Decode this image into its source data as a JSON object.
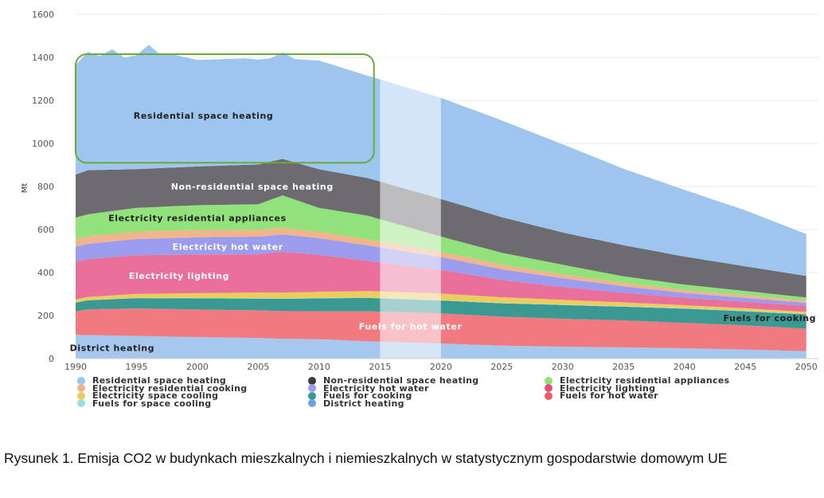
{
  "chart_data": {
    "type": "area",
    "stacked": true,
    "ylabel": "Mt",
    "ylim": [
      0,
      1600
    ],
    "yticks": [
      0,
      200,
      400,
      600,
      800,
      1000,
      1200,
      1400,
      1600
    ],
    "xlim": [
      1990,
      2051
    ],
    "xticks": [
      1990,
      1995,
      2000,
      2005,
      2010,
      2015,
      2020,
      2025,
      2030,
      2035,
      2040,
      2045,
      2050
    ],
    "projection_shading": {
      "from": 2015,
      "to": 2020
    },
    "highlight_box": {
      "from_x": 1990,
      "to_x": 2014.5,
      "from_y": 910,
      "to_y": 1415,
      "color": "#6aaa3a"
    },
    "series": [
      {
        "name": "District heating",
        "color": "#a6c8ee",
        "label": "District heating",
        "label_x": 1993,
        "label_y": 50,
        "points": [
          [
            1990,
            110
          ],
          [
            1995,
            105
          ],
          [
            2000,
            100
          ],
          [
            2005,
            96
          ],
          [
            2007,
            92
          ],
          [
            2010,
            90
          ],
          [
            2014,
            80
          ],
          [
            2020,
            70
          ],
          [
            2025,
            60
          ],
          [
            2030,
            55
          ],
          [
            2035,
            52
          ],
          [
            2040,
            48
          ],
          [
            2045,
            42
          ],
          [
            2050,
            34
          ]
        ]
      },
      {
        "name": "Fuels for hot water",
        "color": "#f07a80",
        "label": "Fuels for hot water",
        "label_x": 2017.5,
        "label_y": 150,
        "label_color": "#ffffff",
        "points": [
          [
            1990,
            110
          ],
          [
            1991,
            120
          ],
          [
            1995,
            128
          ],
          [
            2000,
            128
          ],
          [
            2005,
            128
          ],
          [
            2010,
            130
          ],
          [
            2014,
            140
          ],
          [
            2020,
            140
          ],
          [
            2025,
            135
          ],
          [
            2030,
            130
          ],
          [
            2035,
            125
          ],
          [
            2040,
            118
          ],
          [
            2045,
            112
          ],
          [
            2050,
            105
          ]
        ]
      },
      {
        "name": "Fuels for cooking",
        "color": "#3a9a92",
        "label": "Fuels for cooking",
        "label_x": 2047,
        "label_y": 188,
        "points": [
          [
            1990,
            40
          ],
          [
            1995,
            48
          ],
          [
            2000,
            52
          ],
          [
            2005,
            55
          ],
          [
            2010,
            60
          ],
          [
            2014,
            62
          ],
          [
            2020,
            60
          ],
          [
            2025,
            62
          ],
          [
            2030,
            64
          ],
          [
            2035,
            64
          ],
          [
            2040,
            66
          ],
          [
            2045,
            66
          ],
          [
            2050,
            66
          ]
        ]
      },
      {
        "name": "Fuels for space cooling",
        "color": "#8fe3e6",
        "points": [
          [
            1990,
            1
          ],
          [
            2000,
            2
          ],
          [
            2010,
            2
          ],
          [
            2020,
            2
          ],
          [
            2030,
            2
          ],
          [
            2040,
            2
          ],
          [
            2050,
            2
          ]
        ]
      },
      {
        "name": "Electricity space cooling",
        "color": "#eccc5a",
        "points": [
          [
            1990,
            14
          ],
          [
            1995,
            18
          ],
          [
            2000,
            22
          ],
          [
            2005,
            26
          ],
          [
            2010,
            28
          ],
          [
            2014,
            30
          ],
          [
            2020,
            30
          ],
          [
            2025,
            26
          ],
          [
            2030,
            22
          ],
          [
            2035,
            18
          ],
          [
            2040,
            14
          ],
          [
            2045,
            12
          ],
          [
            2050,
            10
          ]
        ]
      },
      {
        "name": "Electricity lighting",
        "color": "#e8709a",
        "label": "Electricity lighting",
        "label_x": 1998.5,
        "label_y": 385,
        "label_color": "#ffffff",
        "points": [
          [
            1990,
            175
          ],
          [
            1995,
            180
          ],
          [
            2000,
            180
          ],
          [
            2005,
            178
          ],
          [
            2007,
            190
          ],
          [
            2010,
            172
          ],
          [
            2014,
            140
          ],
          [
            2020,
            110
          ],
          [
            2025,
            80
          ],
          [
            2030,
            60
          ],
          [
            2035,
            45
          ],
          [
            2040,
            35
          ],
          [
            2045,
            30
          ],
          [
            2050,
            28
          ]
        ]
      },
      {
        "name": "Electricity hot water",
        "color": "#9b9cee",
        "label": "Electricity hot water",
        "label_x": 2002.5,
        "label_y": 520,
        "label_color": "#ffffff",
        "points": [
          [
            1990,
            70
          ],
          [
            1995,
            75
          ],
          [
            2000,
            80
          ],
          [
            2005,
            82
          ],
          [
            2010,
            78
          ],
          [
            2014,
            72
          ],
          [
            2020,
            60
          ],
          [
            2025,
            50
          ],
          [
            2030,
            40
          ],
          [
            2035,
            30
          ],
          [
            2040,
            22
          ],
          [
            2045,
            18
          ],
          [
            2050,
            14
          ]
        ]
      },
      {
        "name": "Electricity residential cooking",
        "color": "#f2b48a",
        "points": [
          [
            1990,
            35
          ],
          [
            1995,
            35
          ],
          [
            2000,
            34
          ],
          [
            2005,
            32
          ],
          [
            2010,
            30
          ],
          [
            2014,
            28
          ],
          [
            2020,
            25
          ],
          [
            2025,
            22
          ],
          [
            2030,
            18
          ],
          [
            2035,
            16
          ],
          [
            2040,
            14
          ],
          [
            2045,
            12
          ],
          [
            2050,
            10
          ]
        ]
      },
      {
        "name": "Electricity residential appliances",
        "color": "#92e27c",
        "label": "Electricity residential appliances",
        "label_x": 2000,
        "label_y": 653,
        "points": [
          [
            1990,
            100
          ],
          [
            1995,
            110
          ],
          [
            2000,
            115
          ],
          [
            2005,
            118
          ],
          [
            2007,
            150
          ],
          [
            2010,
            110
          ],
          [
            2014,
            110
          ],
          [
            2020,
            70
          ],
          [
            2025,
            55
          ],
          [
            2030,
            45
          ],
          [
            2035,
            30
          ],
          [
            2040,
            25
          ],
          [
            2045,
            20
          ],
          [
            2050,
            15
          ]
        ]
      },
      {
        "name": "Non-residential space heating",
        "color": "#6d6b70",
        "label": "Non-residential space heating",
        "label_x": 2004.5,
        "label_y": 800,
        "label_color": "#ffffff",
        "points": [
          [
            1990,
            200
          ],
          [
            1991,
            205
          ],
          [
            1995,
            180
          ],
          [
            2000,
            180
          ],
          [
            2005,
            185
          ],
          [
            2007,
            170
          ],
          [
            2010,
            180
          ],
          [
            2014,
            175
          ],
          [
            2020,
            175
          ],
          [
            2025,
            165
          ],
          [
            2030,
            150
          ],
          [
            2035,
            145
          ],
          [
            2040,
            130
          ],
          [
            2045,
            115
          ],
          [
            2050,
            100
          ]
        ]
      },
      {
        "name": "Residential space heating",
        "color": "#9ec5ee",
        "label": "Residential space heating",
        "label_x": 2000.5,
        "label_y": 1130,
        "points": [
          [
            1990,
            510
          ],
          [
            1991,
            550
          ],
          [
            1992,
            530
          ],
          [
            1993,
            560
          ],
          [
            1994,
            520
          ],
          [
            1995,
            530
          ],
          [
            1996,
            575
          ],
          [
            1997,
            525
          ],
          [
            1998,
            525
          ],
          [
            1999,
            510
          ],
          [
            2000,
            495
          ],
          [
            2002,
            495
          ],
          [
            2004,
            495
          ],
          [
            2006,
            480
          ],
          [
            2007,
            495
          ],
          [
            2008,
            480
          ],
          [
            2010,
            505
          ],
          [
            2012,
            490
          ],
          [
            2014,
            475
          ],
          [
            2015,
            475
          ],
          [
            2020,
            470
          ],
          [
            2025,
            450
          ],
          [
            2030,
            410
          ],
          [
            2035,
            355
          ],
          [
            2040,
            310
          ],
          [
            2045,
            260
          ],
          [
            2050,
            195
          ]
        ]
      }
    ]
  },
  "legend": {
    "items": [
      {
        "label": "Residential space heating",
        "color": "#9ec5ee"
      },
      {
        "label": "Non-residential space heating",
        "color": "#3c3a3f"
      },
      {
        "label": "Electricity residential appliances",
        "color": "#92e27c"
      },
      {
        "label": "Electricity residential cooking",
        "color": "#f2b48a"
      },
      {
        "label": "Electricity hot water",
        "color": "#9b9cee"
      },
      {
        "label": "Electricity lighting",
        "color": "#e0507e"
      },
      {
        "label": "Electricity space cooling",
        "color": "#eccc5a"
      },
      {
        "label": "Fuels for cooking",
        "color": "#3a9a92"
      },
      {
        "label": "Fuels for hot water",
        "color": "#f05a62"
      },
      {
        "label": "Fuels for space cooling",
        "color": "#8fe3e6"
      },
      {
        "label": "District heating",
        "color": "#6fa3e0"
      }
    ]
  },
  "caption": "Rysunek 1. Emisja CO2 w budynkach mieszkalnych i niemieszkalnych w statystycznym gospodarstwie domowym UE"
}
